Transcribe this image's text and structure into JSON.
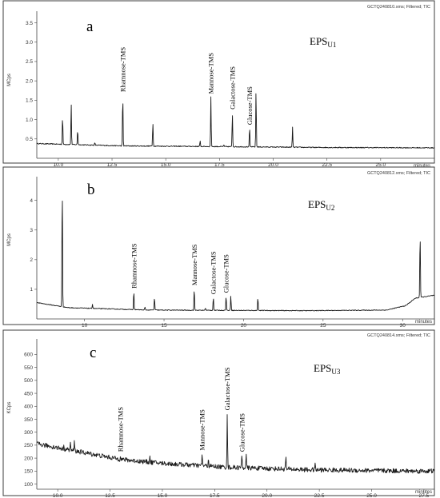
{
  "chart_data": [
    {
      "type": "line",
      "panel_letter": "a",
      "label_main": "EPS",
      "label_sub": "U1",
      "header": "GCTQ240810.xms; Filtered; TIC",
      "ylabel": "MCps",
      "xlabel": "minutes",
      "xlim": [
        9.0,
        27.5
      ],
      "ylim": [
        0.0,
        3.8
      ],
      "xticks": [
        10.0,
        12.5,
        15.0,
        17.5,
        20.0,
        22.5,
        25.0
      ],
      "xtick_labels": [
        "10.0",
        "12.5",
        "15.0",
        "17.5",
        "20.0",
        "22.5",
        "25.0"
      ],
      "yticks": [
        0.5,
        1.0,
        1.5,
        2.0,
        2.5,
        3.0,
        3.5
      ],
      "ytick_labels": [
        "0.5",
        "1.0",
        "1.5",
        "2.0",
        "2.5",
        "3.0",
        "3.5"
      ],
      "baseline": [
        [
          9.0,
          0.38
        ],
        [
          13.0,
          0.32
        ],
        [
          18.0,
          0.3
        ],
        [
          22.0,
          0.28
        ],
        [
          27.5,
          0.27
        ]
      ],
      "peaks": [
        {
          "rt": 10.2,
          "height": 1.1
        },
        {
          "rt": 10.6,
          "height": 1.4
        },
        {
          "rt": 10.9,
          "height": 0.75
        },
        {
          "rt": 11.7,
          "height": 0.4
        },
        {
          "rt": 13.0,
          "height": 1.65
        },
        {
          "rt": 14.4,
          "height": 0.95
        },
        {
          "rt": 16.6,
          "height": 0.45
        },
        {
          "rt": 17.1,
          "height": 1.6
        },
        {
          "rt": 17.7,
          "height": 0.35
        },
        {
          "rt": 18.1,
          "height": 1.2
        },
        {
          "rt": 18.9,
          "height": 0.8
        },
        {
          "rt": 19.2,
          "height": 1.75
        },
        {
          "rt": 20.9,
          "height": 0.8
        }
      ],
      "labels": [
        {
          "text": "Rhamnose-TMS",
          "rt": 13.0
        },
        {
          "text": "Mannose-TMS",
          "rt": 17.1
        },
        {
          "text": "Galactose-TMS",
          "rt": 18.1
        },
        {
          "text": "Glucose-TMS",
          "rt": 18.9
        }
      ]
    },
    {
      "type": "line",
      "panel_letter": "b",
      "label_main": "EPS",
      "label_sub": "U2",
      "header": "GCTQ240812.xms; Filtered; TIC",
      "ylabel": "MCps",
      "xlabel": "minutes",
      "xlim": [
        7.0,
        32.0
      ],
      "ylim": [
        0.0,
        4.8
      ],
      "xticks": [
        10,
        15,
        20,
        25,
        30
      ],
      "xtick_labels": [
        "10",
        "15",
        "20",
        "25",
        "30"
      ],
      "yticks": [
        1,
        2,
        3,
        4
      ],
      "ytick_labels": [
        "1",
        "2",
        "3",
        "4"
      ],
      "baseline": [
        [
          7.0,
          0.55
        ],
        [
          9.0,
          0.38
        ],
        [
          14.0,
          0.3
        ],
        [
          24.0,
          0.28
        ],
        [
          29.0,
          0.3
        ],
        [
          30.2,
          0.45
        ],
        [
          30.8,
          0.7
        ],
        [
          32.0,
          0.8
        ]
      ],
      "peaks": [
        {
          "rt": 8.6,
          "height": 4.75
        },
        {
          "rt": 10.5,
          "height": 0.5
        },
        {
          "rt": 13.1,
          "height": 0.95
        },
        {
          "rt": 13.8,
          "height": 0.4
        },
        {
          "rt": 14.4,
          "height": 0.75
        },
        {
          "rt": 16.9,
          "height": 1.05
        },
        {
          "rt": 17.6,
          "height": 0.38
        },
        {
          "rt": 18.1,
          "height": 0.75
        },
        {
          "rt": 18.9,
          "height": 0.8
        },
        {
          "rt": 19.2,
          "height": 0.8
        },
        {
          "rt": 20.9,
          "height": 0.75
        },
        {
          "rt": 31.1,
          "height": 3.0
        }
      ],
      "labels": [
        {
          "text": "Rhamnose-TMS",
          "rt": 13.1
        },
        {
          "text": "Mannose-TMS",
          "rt": 16.9
        },
        {
          "text": "Galactose-TMS",
          "rt": 18.1
        },
        {
          "text": "Glucose-TMS",
          "rt": 18.9
        }
      ]
    },
    {
      "type": "line",
      "panel_letter": "c",
      "label_main": "EPS",
      "label_sub": "U3",
      "header": "GCTQ240814.xms; Filtered; TIC",
      "ylabel": "KCps",
      "xlabel": "minutes",
      "xlim": [
        9.0,
        28.0
      ],
      "ylim": [
        80,
        660
      ],
      "xticks": [
        10.0,
        12.5,
        15.0,
        17.5,
        20.0,
        22.5,
        25.0,
        27.5
      ],
      "xtick_labels": [
        "10.0",
        "12.5",
        "15.0",
        "17.5",
        "20.0",
        "22.5",
        "25.0",
        "27.5"
      ],
      "yticks": [
        100,
        150,
        200,
        250,
        300,
        350,
        400,
        450,
        500,
        550,
        600
      ],
      "ytick_labels": [
        "100",
        "150",
        "200",
        "250",
        "300",
        "350",
        "400",
        "450",
        "500",
        "550",
        "600"
      ],
      "baseline": [
        [
          9.0,
          255
        ],
        [
          11.0,
          225
        ],
        [
          13.0,
          195
        ],
        [
          15.0,
          180
        ],
        [
          18.0,
          165
        ],
        [
          22.0,
          155
        ],
        [
          27.0,
          150
        ],
        [
          28.0,
          150
        ]
      ],
      "peaks": [
        {
          "rt": 10.3,
          "height": 245
        },
        {
          "rt": 10.6,
          "height": 260
        },
        {
          "rt": 10.8,
          "height": 265
        },
        {
          "rt": 13.0,
          "height": 215
        },
        {
          "rt": 14.4,
          "height": 205
        },
        {
          "rt": 16.9,
          "height": 220
        },
        {
          "rt": 17.2,
          "height": 200
        },
        {
          "rt": 18.1,
          "height": 375
        },
        {
          "rt": 18.8,
          "height": 215
        },
        {
          "rt": 19.0,
          "height": 215
        },
        {
          "rt": 20.9,
          "height": 205
        },
        {
          "rt": 22.3,
          "height": 175
        }
      ],
      "labels": [
        {
          "text": "Rhamnose-TMS",
          "rt": 13.0
        },
        {
          "text": "Mannose-TMS",
          "rt": 16.9
        },
        {
          "text": "Galactose-TMS",
          "rt": 18.1
        },
        {
          "text": "Glucose-TMS",
          "rt": 18.8
        }
      ]
    }
  ]
}
